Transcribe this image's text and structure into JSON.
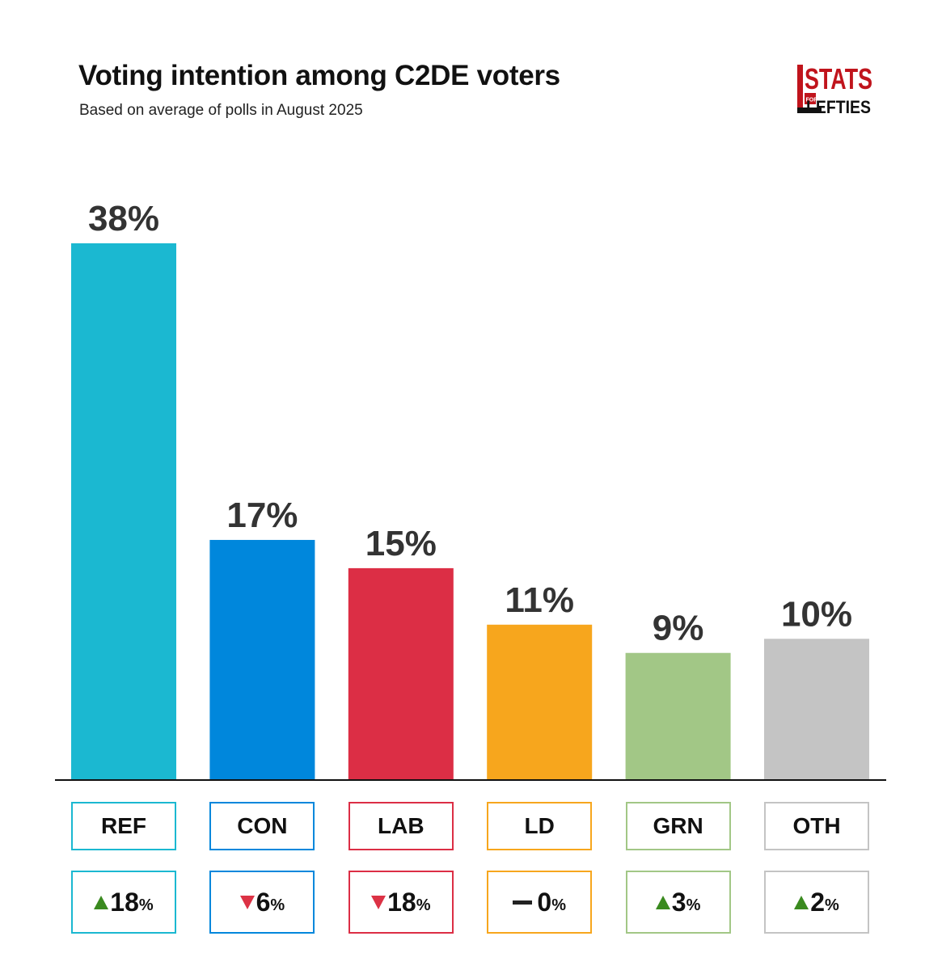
{
  "header": {
    "title": "Voting intention among C2DE voters",
    "subtitle": "Based on average of polls in August 2025"
  },
  "logo": {
    "top_text": "STATS",
    "small_text": "FOR",
    "bottom_text": "LEFTIES",
    "color": "#c0141c"
  },
  "chart_data": {
    "type": "bar",
    "title": "Voting intention among C2DE voters",
    "subtitle": "Based on average of polls in August 2025",
    "categories": [
      "REF",
      "CON",
      "LAB",
      "LD",
      "GRN",
      "OTH"
    ],
    "values": [
      38,
      17,
      15,
      11,
      9,
      10
    ],
    "value_labels": [
      "38%",
      "17%",
      "15%",
      "11%",
      "9%",
      "10%"
    ],
    "colors": [
      "#1bb8d1",
      "#0087dc",
      "#dc2e45",
      "#f7a61d",
      "#a2c786",
      "#c4c4c4"
    ],
    "changes": [
      {
        "direction": "up",
        "value": "18",
        "unit": "%"
      },
      {
        "direction": "down",
        "value": "6",
        "unit": "%"
      },
      {
        "direction": "down",
        "value": "18",
        "unit": "%"
      },
      {
        "direction": "flat",
        "value": "0",
        "unit": "%"
      },
      {
        "direction": "up",
        "value": "3",
        "unit": "%"
      },
      {
        "direction": "up",
        "value": "2",
        "unit": "%"
      }
    ],
    "ylim": [
      0,
      38
    ],
    "xlabel": "",
    "ylabel": "",
    "grid": false
  }
}
